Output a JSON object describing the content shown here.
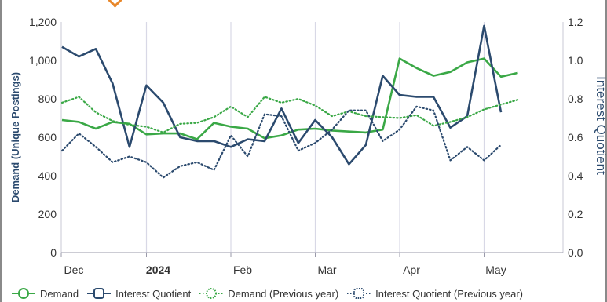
{
  "chart_data": {
    "type": "line",
    "title": "",
    "xlabel": "",
    "ylabel": "Demand (Unique Postings)",
    "y2label": "Interest Quotient",
    "ylim": [
      0,
      1200
    ],
    "y2lim": [
      0,
      1.2
    ],
    "yticks": [
      "0",
      "200",
      "400",
      "600",
      "800",
      "1,000",
      "1,200"
    ],
    "y2ticks": [
      "0.0",
      "0.2",
      "0.4",
      "0.6",
      "0.8",
      "1.0",
      "1.2"
    ],
    "xtick_labels": [
      {
        "label": "Dec",
        "bold": false,
        "week": 0
      },
      {
        "label": "2024",
        "bold": true,
        "week": 5
      },
      {
        "label": "Feb",
        "bold": false,
        "week": 10
      },
      {
        "label": "Mar",
        "bold": false,
        "week": 15
      },
      {
        "label": "Apr",
        "bold": false,
        "week": 20
      },
      {
        "label": "May",
        "bold": false,
        "week": 25
      }
    ],
    "x_weeks": [
      -0.7,
      0.3,
      1.3,
      2.3,
      3.3,
      4.3,
      5.3,
      6.3,
      7.3,
      8.3,
      9.3,
      10.3,
      11.3,
      12.3,
      13.3,
      14.3,
      15.3,
      16.3,
      17.3,
      18.3,
      19.3,
      20.3,
      21.3,
      22.3,
      23.3,
      24.3,
      25.3,
      26.3,
      27.3,
      28.3
    ],
    "grid": {
      "vertical": true,
      "horizontal": false
    },
    "legend_position": "bottom",
    "series": [
      {
        "name": "Demand",
        "axis": "left",
        "style": "solid",
        "color": "#3aa846",
        "values": [
          690,
          680,
          645,
          680,
          670,
          615,
          620,
          620,
          590,
          675,
          655,
          645,
          595,
          610,
          640,
          645,
          635,
          630,
          625,
          640,
          1010,
          960,
          920,
          940,
          990,
          1010,
          915,
          935
        ]
      },
      {
        "name": "Interest Quotient",
        "axis": "right",
        "style": "solid",
        "color": "#2b4a6e",
        "values": [
          1.07,
          1.02,
          1.06,
          0.88,
          0.55,
          0.87,
          0.78,
          0.6,
          0.58,
          0.58,
          0.55,
          0.59,
          0.58,
          0.75,
          0.57,
          0.69,
          0.6,
          0.46,
          0.56,
          0.92,
          0.82,
          0.81,
          0.81,
          0.65,
          0.71,
          1.18,
          0.73
        ]
      },
      {
        "name": "Demand (Previous year)",
        "axis": "left",
        "style": "dotted",
        "color": "#3aa846",
        "values": [
          780,
          810,
          730,
          685,
          665,
          655,
          625,
          670,
          675,
          705,
          760,
          705,
          810,
          780,
          800,
          765,
          710,
          735,
          710,
          705,
          700,
          715,
          660,
          680,
          705,
          745,
          770,
          795
        ]
      },
      {
        "name": "Interest Quotient (Previous year)",
        "axis": "right",
        "style": "dotted",
        "color": "#2b4a6e",
        "values": [
          0.53,
          0.62,
          0.55,
          0.47,
          0.5,
          0.47,
          0.39,
          0.45,
          0.47,
          0.43,
          0.61,
          0.5,
          0.72,
          0.71,
          0.53,
          0.57,
          0.64,
          0.74,
          0.74,
          0.58,
          0.64,
          0.76,
          0.74,
          0.48,
          0.55,
          0.48,
          0.56
        ]
      }
    ]
  },
  "legend": [
    {
      "label": "Demand",
      "color": "#3aa846",
      "style": "solid"
    },
    {
      "label": "Interest Quotient",
      "color": "#2b4a6e",
      "style": "solid"
    },
    {
      "label": "Demand (Previous year)",
      "color": "#3aa846",
      "style": "dotted"
    },
    {
      "label": "Interest Quotient (Previous year)",
      "color": "#2b4a6e",
      "style": "dotted"
    }
  ]
}
